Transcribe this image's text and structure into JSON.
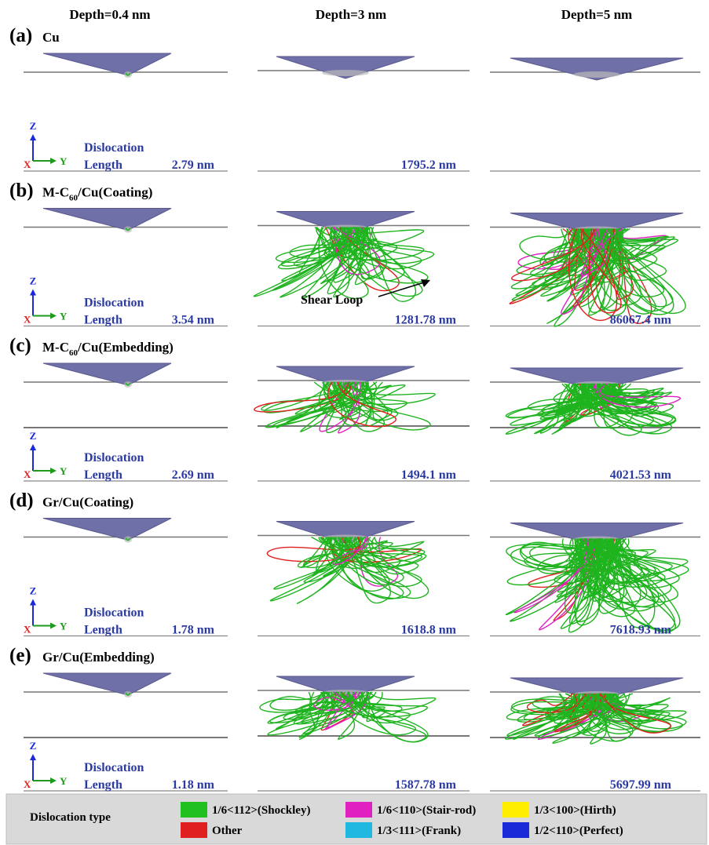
{
  "columns": [
    "Depth=0.4 nm",
    "Depth=3 nm",
    "Depth=5 nm"
  ],
  "rows": [
    {
      "label": "(a)",
      "name": {
        "pre": "Cu"
      },
      "lengths": [
        "2.79 nm",
        "1795.2 nm",
        ""
      ]
    },
    {
      "label": "(b)",
      "name": {
        "pre": "M-C",
        "sub": "60",
        "post": "/Cu(Coating)"
      },
      "lengths": [
        "3.54 nm",
        "1281.78 nm",
        "86067.4 nm"
      ]
    },
    {
      "label": "(c)",
      "name": {
        "pre": "M-C",
        "sub": "60",
        "post": "/Cu(Embedding)"
      },
      "lengths": [
        "2.69 nm",
        "1494.1 nm",
        "4021.53 nm"
      ]
    },
    {
      "label": "(d)",
      "name": {
        "pre": "Gr/Cu(Coating)"
      },
      "lengths": [
        "1.78 nm",
        "1618.8 nm",
        "7618.93 nm"
      ]
    },
    {
      "label": "(e)",
      "name": {
        "pre": "Gr/Cu(Embedding)"
      },
      "lengths": [
        "1.18 nm",
        "1587.78 nm",
        "5697.99 nm"
      ]
    }
  ],
  "axes": {
    "z": "Z",
    "x": "X",
    "y": "Y"
  },
  "dislocation_label": [
    "Dislocation",
    "Length"
  ],
  "annotation": "Shear Loop",
  "legend": {
    "title": "Dislocation type",
    "items": [
      {
        "label": "1/6<112>(Shockley)",
        "color": "#1fc01f"
      },
      {
        "label": "1/6<110>(Stair-rod)",
        "color": "#e020c0"
      },
      {
        "label": "1/3<100>(Hirth)",
        "color": "#ffee00"
      },
      {
        "label": "Other",
        "color": "#e02020"
      },
      {
        "label": "1/3<111>(Frank)",
        "color": "#20b8e0"
      },
      {
        "label": "1/2<110>(Perfect)",
        "color": "#1a2ad8"
      }
    ]
  }
}
